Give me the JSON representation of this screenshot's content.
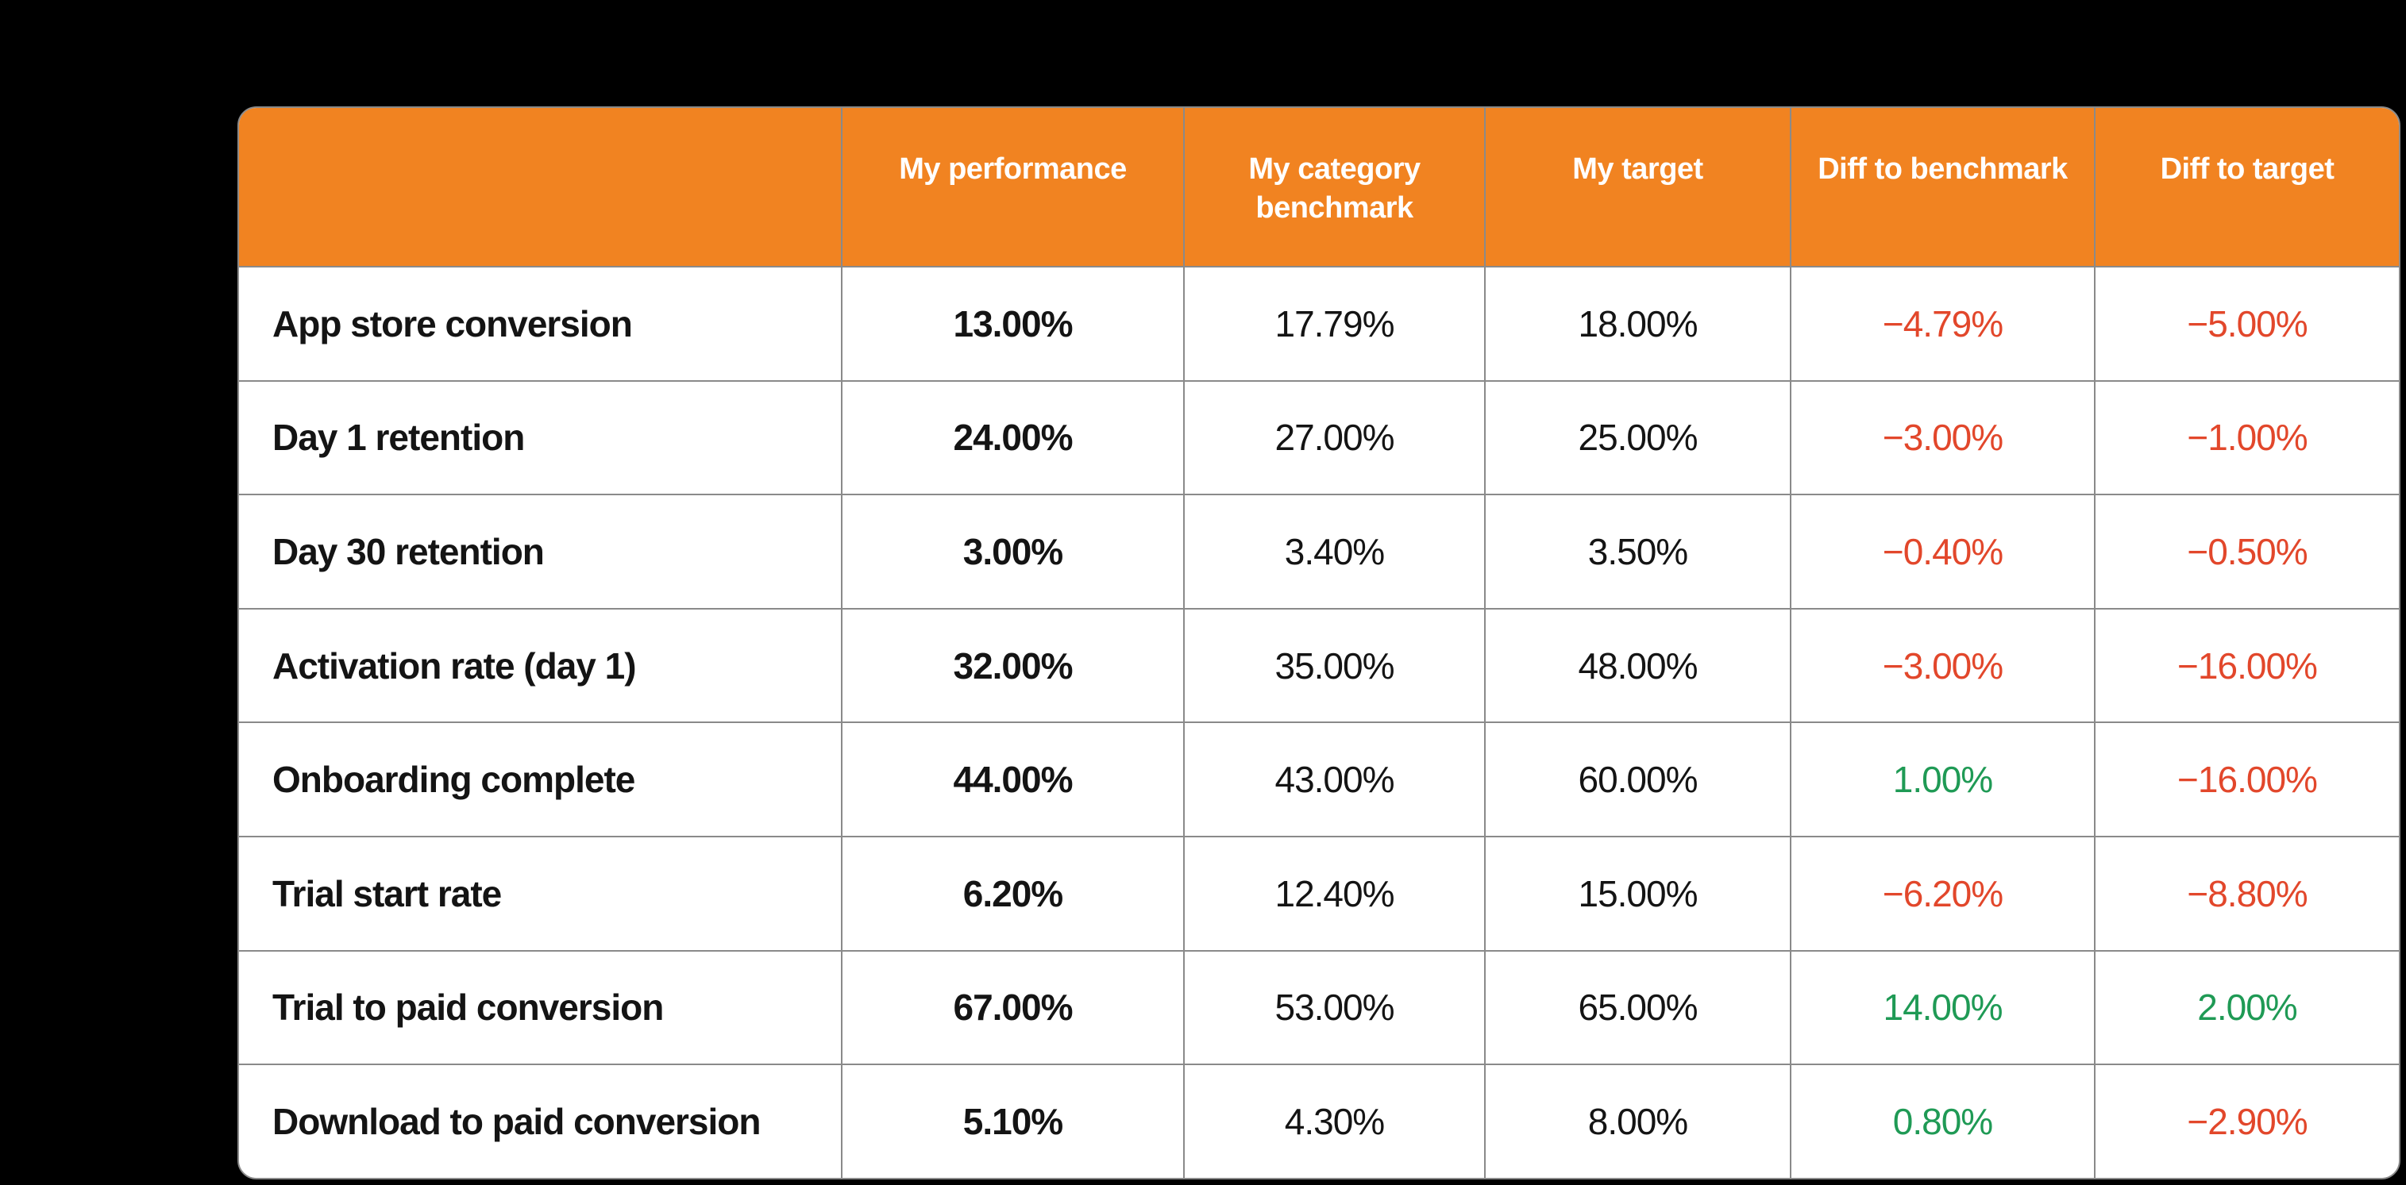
{
  "table": {
    "columns": [
      {
        "label": ""
      },
      {
        "label": "My performance"
      },
      {
        "label": "My category benchmark"
      },
      {
        "label": "My target"
      },
      {
        "label": "Diff to benchmark"
      },
      {
        "label": "Diff to target"
      }
    ],
    "rows": [
      {
        "label": "App store conversion",
        "performance": "13.00%",
        "benchmark": "17.79%",
        "target": "18.00%",
        "diff_benchmark": "−4.79%",
        "diff_target": "−5.00%"
      },
      {
        "label": "Day 1 retention",
        "performance": "24.00%",
        "benchmark": "27.00%",
        "target": "25.00%",
        "diff_benchmark": "−3.00%",
        "diff_target": "−1.00%"
      },
      {
        "label": "Day 30 retention",
        "performance": "3.00%",
        "benchmark": "3.40%",
        "target": "3.50%",
        "diff_benchmark": "−0.40%",
        "diff_target": "−0.50%"
      },
      {
        "label": "Activation rate (day 1)",
        "performance": "32.00%",
        "benchmark": "35.00%",
        "target": "48.00%",
        "diff_benchmark": "−3.00%",
        "diff_target": "−16.00%"
      },
      {
        "label": "Onboarding complete",
        "performance": "44.00%",
        "benchmark": "43.00%",
        "target": "60.00%",
        "diff_benchmark": "1.00%",
        "diff_target": "−16.00%"
      },
      {
        "label": "Trial start rate",
        "performance": "6.20%",
        "benchmark": "12.40%",
        "target": "15.00%",
        "diff_benchmark": "−6.20%",
        "diff_target": "−8.80%"
      },
      {
        "label": "Trial to paid conversion",
        "performance": "67.00%",
        "benchmark": "53.00%",
        "target": "65.00%",
        "diff_benchmark": "14.00%",
        "diff_target": "2.00%"
      },
      {
        "label": "Download to paid conversion",
        "performance": "5.10%",
        "benchmark": "4.30%",
        "target": "8.00%",
        "diff_benchmark": "0.80%",
        "diff_target": "−2.90%"
      }
    ]
  },
  "colors": {
    "page_bg": "#000000",
    "header_bg": "#F18321",
    "header_text": "#FFFFFF",
    "gridline": "#8A8A8A",
    "negative": "#E2472B",
    "positive": "#1F9A55",
    "table_bg": "#FFFFFF"
  },
  "chart_data": {
    "type": "table",
    "columns": [
      "",
      "My performance",
      "My category benchmark",
      "My target",
      "Diff to benchmark",
      "Diff to target"
    ],
    "rows": [
      [
        "App store conversion",
        "13.00%",
        "17.79%",
        "18.00%",
        "−4.79%",
        "−5.00%"
      ],
      [
        "Day 1 retention",
        "24.00%",
        "27.00%",
        "25.00%",
        "−3.00%",
        "−1.00%"
      ],
      [
        "Day 30 retention",
        "3.00%",
        "3.40%",
        "3.50%",
        "−0.40%",
        "−0.50%"
      ],
      [
        "Activation rate (day 1)",
        "32.00%",
        "35.00%",
        "48.00%",
        "−3.00%",
        "−16.00%"
      ],
      [
        "Onboarding complete",
        "44.00%",
        "43.00%",
        "60.00%",
        "1.00%",
        "−16.00%"
      ],
      [
        "Trial start rate",
        "6.20%",
        "12.40%",
        "15.00%",
        "−6.20%",
        "−8.80%"
      ],
      [
        "Trial to paid conversion",
        "67.00%",
        "53.00%",
        "65.00%",
        "14.00%",
        "2.00%"
      ],
      [
        "Download to paid conversion",
        "5.10%",
        "4.30%",
        "8.00%",
        "0.80%",
        "−2.90%"
      ]
    ],
    "notes": "Negative diff values rendered in red-orange (#E2472B), positive diff values in green (#1F9A55). Header row orange (#F18321) with white text. Row metric labels and My performance values are bold."
  }
}
